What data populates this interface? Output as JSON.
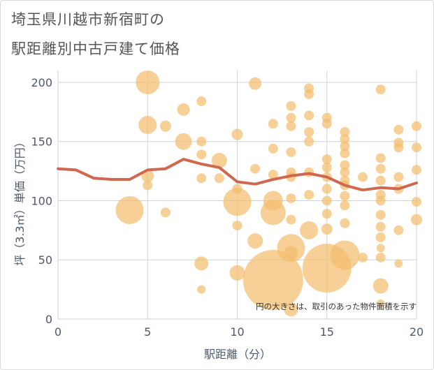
{
  "title_line1": "埼玉県川越市新宿町の",
  "title_line2": "駅距離別中古戸建て価格",
  "note": "円の大きさは、取引のあった物件面積を示す",
  "colors": {
    "bubble": "#f2be6e",
    "line": "#d0684f",
    "grid": "#ccd3da",
    "text": "#4d5a6b"
  },
  "chart_data": {
    "type": "scatter",
    "title": "埼玉県川越市新宿町の 駅距離別中古戸建て価格",
    "xlabel": "駅距離（分）",
    "ylabel": "坪（3.3㎡）単価（万円）",
    "xlim": [
      0,
      20
    ],
    "ylim": [
      0,
      210
    ],
    "xticks": [
      0,
      5,
      10,
      15,
      20
    ],
    "yticks": [
      0,
      50,
      100,
      150,
      200
    ],
    "grid": true,
    "bubbles": [
      {
        "x": 5,
        "y": 200,
        "r": 17
      },
      {
        "x": 11,
        "y": 199,
        "r": 9
      },
      {
        "x": 8,
        "y": 184,
        "r": 7
      },
      {
        "x": 7,
        "y": 177,
        "r": 9
      },
      {
        "x": 5,
        "y": 164,
        "r": 13
      },
      {
        "x": 6,
        "y": 163,
        "r": 8
      },
      {
        "x": 7,
        "y": 150,
        "r": 12
      },
      {
        "x": 8,
        "y": 150,
        "r": 7
      },
      {
        "x": 10,
        "y": 156,
        "r": 8
      },
      {
        "x": 8,
        "y": 139,
        "r": 7
      },
      {
        "x": 9,
        "y": 134,
        "r": 11
      },
      {
        "x": 5,
        "y": 121,
        "r": 9
      },
      {
        "x": 5,
        "y": 113,
        "r": 7
      },
      {
        "x": 8,
        "y": 119,
        "r": 7
      },
      {
        "x": 9,
        "y": 119,
        "r": 7
      },
      {
        "x": 4,
        "y": 92,
        "r": 20
      },
      {
        "x": 6,
        "y": 90,
        "r": 7
      },
      {
        "x": 8,
        "y": 47,
        "r": 10
      },
      {
        "x": 8,
        "y": 25,
        "r": 6
      },
      {
        "x": 10,
        "y": 99,
        "r": 20
      },
      {
        "x": 10,
        "y": 79,
        "r": 7
      },
      {
        "x": 10,
        "y": 110,
        "r": 7
      },
      {
        "x": 10,
        "y": 39,
        "r": 11
      },
      {
        "x": 11,
        "y": 127,
        "r": 7
      },
      {
        "x": 11,
        "y": 66,
        "r": 11
      },
      {
        "x": 12,
        "y": 33,
        "r": 43
      },
      {
        "x": 12,
        "y": 90,
        "r": 18
      },
      {
        "x": 12,
        "y": 100,
        "r": 14
      },
      {
        "x": 12,
        "y": 144,
        "r": 7
      },
      {
        "x": 12,
        "y": 165,
        "r": 7
      },
      {
        "x": 12,
        "y": 122,
        "r": 7
      },
      {
        "x": 13,
        "y": 60,
        "r": 20
      },
      {
        "x": 13,
        "y": 56,
        "r": 10
      },
      {
        "x": 13,
        "y": 84,
        "r": 7
      },
      {
        "x": 13,
        "y": 102,
        "r": 7
      },
      {
        "x": 13,
        "y": 8,
        "r": 10
      },
      {
        "x": 13,
        "y": 180,
        "r": 7
      },
      {
        "x": 13,
        "y": 170,
        "r": 7
      },
      {
        "x": 13,
        "y": 163,
        "r": 7
      },
      {
        "x": 13,
        "y": 124,
        "r": 7
      },
      {
        "x": 13,
        "y": 120,
        "r": 7
      },
      {
        "x": 13,
        "y": 141,
        "r": 7
      },
      {
        "x": 14,
        "y": 75,
        "r": 13
      },
      {
        "x": 14,
        "y": 105,
        "r": 7
      },
      {
        "x": 14,
        "y": 124,
        "r": 7
      },
      {
        "x": 14,
        "y": 150,
        "r": 7
      },
      {
        "x": 14,
        "y": 158,
        "r": 7
      },
      {
        "x": 14,
        "y": 172,
        "r": 7
      },
      {
        "x": 14,
        "y": 190,
        "r": 7
      },
      {
        "x": 14,
        "y": 195,
        "r": 7
      },
      {
        "x": 15,
        "y": 43,
        "r": 35
      },
      {
        "x": 15,
        "y": 76,
        "r": 8
      },
      {
        "x": 15,
        "y": 89,
        "r": 7
      },
      {
        "x": 15,
        "y": 100,
        "r": 7
      },
      {
        "x": 15,
        "y": 110,
        "r": 7
      },
      {
        "x": 15,
        "y": 120,
        "r": 7
      },
      {
        "x": 15,
        "y": 128,
        "r": 7
      },
      {
        "x": 15,
        "y": 135,
        "r": 7
      },
      {
        "x": 15,
        "y": 165,
        "r": 7
      },
      {
        "x": 15,
        "y": 170,
        "r": 7
      },
      {
        "x": 16,
        "y": 54,
        "r": 21
      },
      {
        "x": 16,
        "y": 81,
        "r": 7
      },
      {
        "x": 16,
        "y": 96,
        "r": 7
      },
      {
        "x": 16,
        "y": 104,
        "r": 7
      },
      {
        "x": 16,
        "y": 113,
        "r": 7
      },
      {
        "x": 16,
        "y": 124,
        "r": 7
      },
      {
        "x": 16,
        "y": 130,
        "r": 7
      },
      {
        "x": 16,
        "y": 140,
        "r": 7
      },
      {
        "x": 16,
        "y": 146,
        "r": 7
      },
      {
        "x": 16,
        "y": 152,
        "r": 7
      },
      {
        "x": 16,
        "y": 158,
        "r": 7
      },
      {
        "x": 16,
        "y": 117,
        "r": 7
      },
      {
        "x": 17,
        "y": 52,
        "r": 7
      },
      {
        "x": 17,
        "y": 120,
        "r": 7
      },
      {
        "x": 18,
        "y": 28,
        "r": 11
      },
      {
        "x": 18,
        "y": 13,
        "r": 6
      },
      {
        "x": 18,
        "y": 52,
        "r": 7
      },
      {
        "x": 18,
        "y": 60,
        "r": 6
      },
      {
        "x": 18,
        "y": 69,
        "r": 7
      },
      {
        "x": 18,
        "y": 78,
        "r": 7
      },
      {
        "x": 18,
        "y": 88,
        "r": 7
      },
      {
        "x": 18,
        "y": 100,
        "r": 7
      },
      {
        "x": 18,
        "y": 105,
        "r": 7
      },
      {
        "x": 18,
        "y": 117,
        "r": 7
      },
      {
        "x": 18,
        "y": 127,
        "r": 7
      },
      {
        "x": 18,
        "y": 136,
        "r": 7
      },
      {
        "x": 18,
        "y": 194,
        "r": 7
      },
      {
        "x": 19,
        "y": 47,
        "r": 6
      },
      {
        "x": 19,
        "y": 75,
        "r": 7
      },
      {
        "x": 19,
        "y": 110,
        "r": 7
      },
      {
        "x": 19,
        "y": 120,
        "r": 7
      },
      {
        "x": 19,
        "y": 145,
        "r": 7
      },
      {
        "x": 19,
        "y": 149,
        "r": 7
      },
      {
        "x": 19,
        "y": 160,
        "r": 7
      },
      {
        "x": 20,
        "y": 84,
        "r": 8
      },
      {
        "x": 20,
        "y": 99,
        "r": 7
      },
      {
        "x": 20,
        "y": 126,
        "r": 7
      },
      {
        "x": 20,
        "y": 145,
        "r": 7
      },
      {
        "x": 20,
        "y": 163,
        "r": 7
      }
    ],
    "average_line": {
      "x": [
        0,
        1,
        2,
        3,
        4,
        5,
        6,
        7,
        8,
        9,
        10,
        11,
        12,
        13,
        14,
        15,
        16,
        17,
        18,
        19,
        20
      ],
      "y": [
        127,
        126,
        119,
        118,
        118,
        126,
        127,
        135,
        131,
        128,
        116,
        114,
        118,
        121,
        123,
        120,
        113,
        109,
        111,
        110,
        115
      ]
    }
  }
}
